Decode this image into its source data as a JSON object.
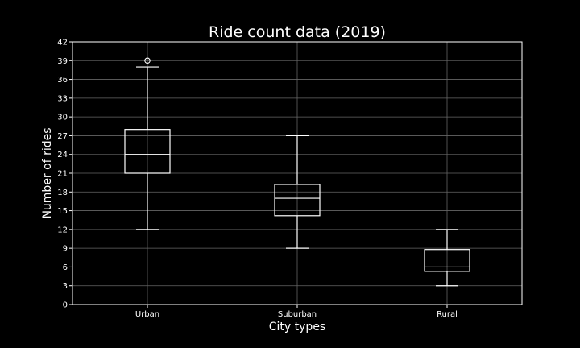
{
  "chart_data": {
    "type": "box",
    "title": "Ride count data (2019)",
    "xlabel": "City types",
    "ylabel": "Number of rides",
    "ylim": [
      0,
      42
    ],
    "yticks": [
      0,
      3,
      6,
      9,
      12,
      15,
      18,
      21,
      24,
      27,
      30,
      33,
      36,
      39,
      42
    ],
    "grid": true,
    "categories": [
      "Urban",
      "Suburban",
      "Rural"
    ],
    "boxes": [
      {
        "category": "Urban",
        "whisker_low": 12,
        "q1": 21,
        "median": 24,
        "q3": 28,
        "whisker_high": 38,
        "outliers": [
          39
        ]
      },
      {
        "category": "Suburban",
        "whisker_low": 9,
        "q1": 14.2,
        "median": 17,
        "q3": 19.2,
        "whisker_high": 27,
        "outliers": []
      },
      {
        "category": "Rural",
        "whisker_low": 3,
        "q1": 5.3,
        "median": 6,
        "q3": 8.8,
        "whisker_high": 12,
        "outliers": []
      }
    ],
    "colors": {
      "background": "#000000",
      "box": "#ffffff",
      "grid": "#666666"
    }
  }
}
